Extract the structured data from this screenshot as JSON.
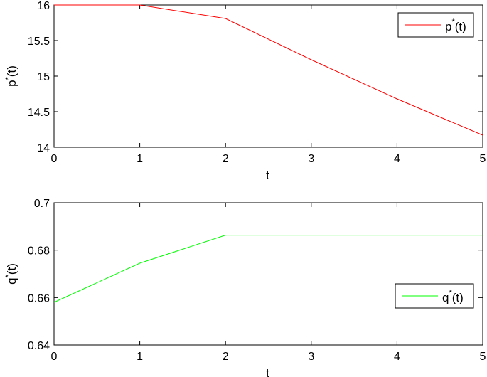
{
  "chart_data": [
    {
      "type": "line",
      "xlabel": "t",
      "ylabel": "p",
      "ylabel_sup": "*",
      "ylabel_arg": "(t)",
      "xlim": [
        0,
        5
      ],
      "ylim": [
        14,
        16
      ],
      "xticks": [
        0,
        1,
        2,
        3,
        4,
        5
      ],
      "yticks": [
        14,
        14.5,
        15,
        15.5,
        16
      ],
      "ytick_labels": [
        "14",
        "14.5",
        "15",
        "15.5",
        "16"
      ],
      "grid": false,
      "legend_position": "top-right",
      "series": [
        {
          "legend_base": "p",
          "legend_sup": "*",
          "legend_arg": "(t)",
          "color": "#ff0000",
          "x": [
            0,
            1,
            2,
            3,
            4,
            5
          ],
          "y": [
            16,
            16,
            15.81,
            15.23,
            14.68,
            14.17
          ]
        }
      ]
    },
    {
      "type": "line",
      "xlabel": "t",
      "ylabel": "q",
      "ylabel_sup": "*",
      "ylabel_arg": "(t)",
      "xlim": [
        0,
        5
      ],
      "ylim": [
        0.64,
        0.7
      ],
      "xticks": [
        0,
        1,
        2,
        3,
        4,
        5
      ],
      "yticks": [
        0.64,
        0.66,
        0.68,
        0.7
      ],
      "ytick_labels": [
        "0.64",
        "0.66",
        "0.68",
        "0.7"
      ],
      "grid": false,
      "legend_position": "bottom-right",
      "series": [
        {
          "legend_base": "q",
          "legend_sup": "*",
          "legend_arg": "(t)",
          "color": "#00ff00",
          "x": [
            0,
            1,
            2,
            3,
            4,
            5
          ],
          "y": [
            0.658,
            0.6745,
            0.6863,
            0.6863,
            0.6863,
            0.6863
          ]
        }
      ]
    }
  ]
}
